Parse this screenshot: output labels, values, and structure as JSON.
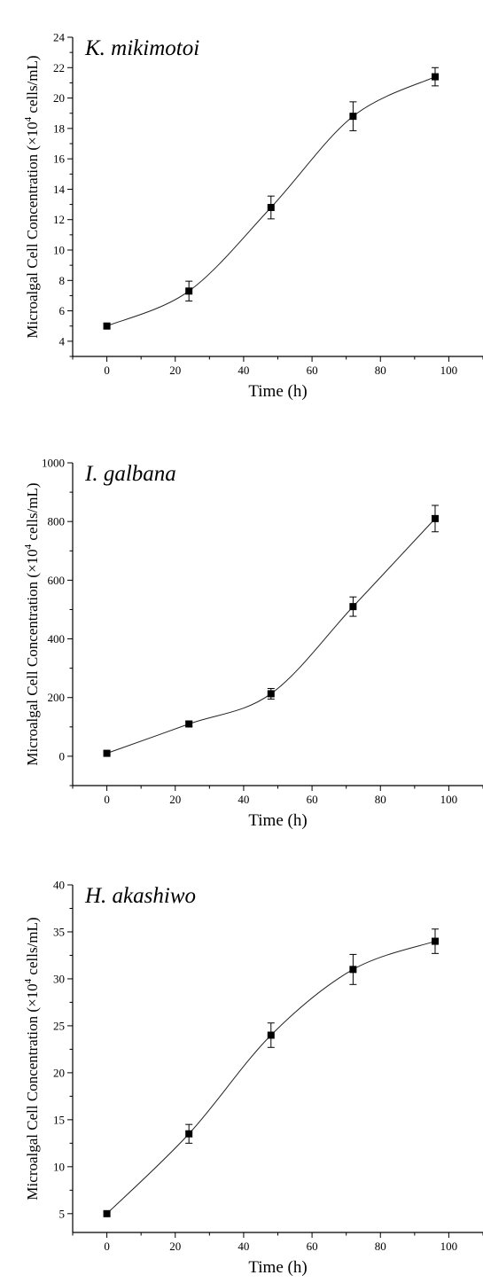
{
  "chart_data": [
    {
      "type": "scatter",
      "title": "K. mikimotoi",
      "xlabel": "Time (h)",
      "ylabel_parts": [
        "Microalgal Cell Concentration (×10",
        "4",
        " cells/mL)"
      ],
      "xlim": [
        -10,
        110
      ],
      "ylim": [
        3,
        24
      ],
      "xticks": [
        0,
        20,
        40,
        60,
        80,
        100
      ],
      "yticks": [
        4,
        6,
        8,
        10,
        12,
        14,
        16,
        18,
        20,
        22,
        24
      ],
      "series": [
        {
          "x": [
            0,
            24,
            48,
            72,
            96
          ],
          "y": [
            5.0,
            7.3,
            12.8,
            18.8,
            21.4
          ],
          "err": [
            0.15,
            0.65,
            0.75,
            0.95,
            0.6
          ]
        }
      ]
    },
    {
      "type": "scatter",
      "title": "I. galbana",
      "xlabel": "Time (h)",
      "ylabel_parts": [
        "Microalgal Cell Concentration (×10",
        "4",
        " cells/mL)"
      ],
      "xlim": [
        -10,
        110
      ],
      "ylim": [
        -100,
        1000
      ],
      "xticks": [
        0,
        20,
        40,
        60,
        80,
        100
      ],
      "yticks": [
        0,
        200,
        400,
        600,
        800,
        1000
      ],
      "series": [
        {
          "x": [
            0,
            24,
            48,
            72,
            96
          ],
          "y": [
            10,
            110,
            213,
            510,
            810
          ],
          "err": [
            5,
            8,
            18,
            33,
            45
          ]
        }
      ]
    },
    {
      "type": "scatter",
      "title": "H. akashiwo",
      "xlabel": "Time (h)",
      "ylabel_parts": [
        "Microalgal Cell Concentration (×10",
        "4",
        " cells/mL)"
      ],
      "xlim": [
        -10,
        110
      ],
      "ylim": [
        3,
        40
      ],
      "xticks": [
        0,
        20,
        40,
        60,
        80,
        100
      ],
      "yticks": [
        5,
        10,
        15,
        20,
        25,
        30,
        35,
        40
      ],
      "series": [
        {
          "x": [
            0,
            24,
            48,
            72,
            96
          ],
          "y": [
            5.0,
            13.5,
            24.0,
            31.0,
            34.0
          ],
          "err": [
            0.2,
            1.0,
            1.3,
            1.6,
            1.3
          ]
        }
      ]
    }
  ]
}
